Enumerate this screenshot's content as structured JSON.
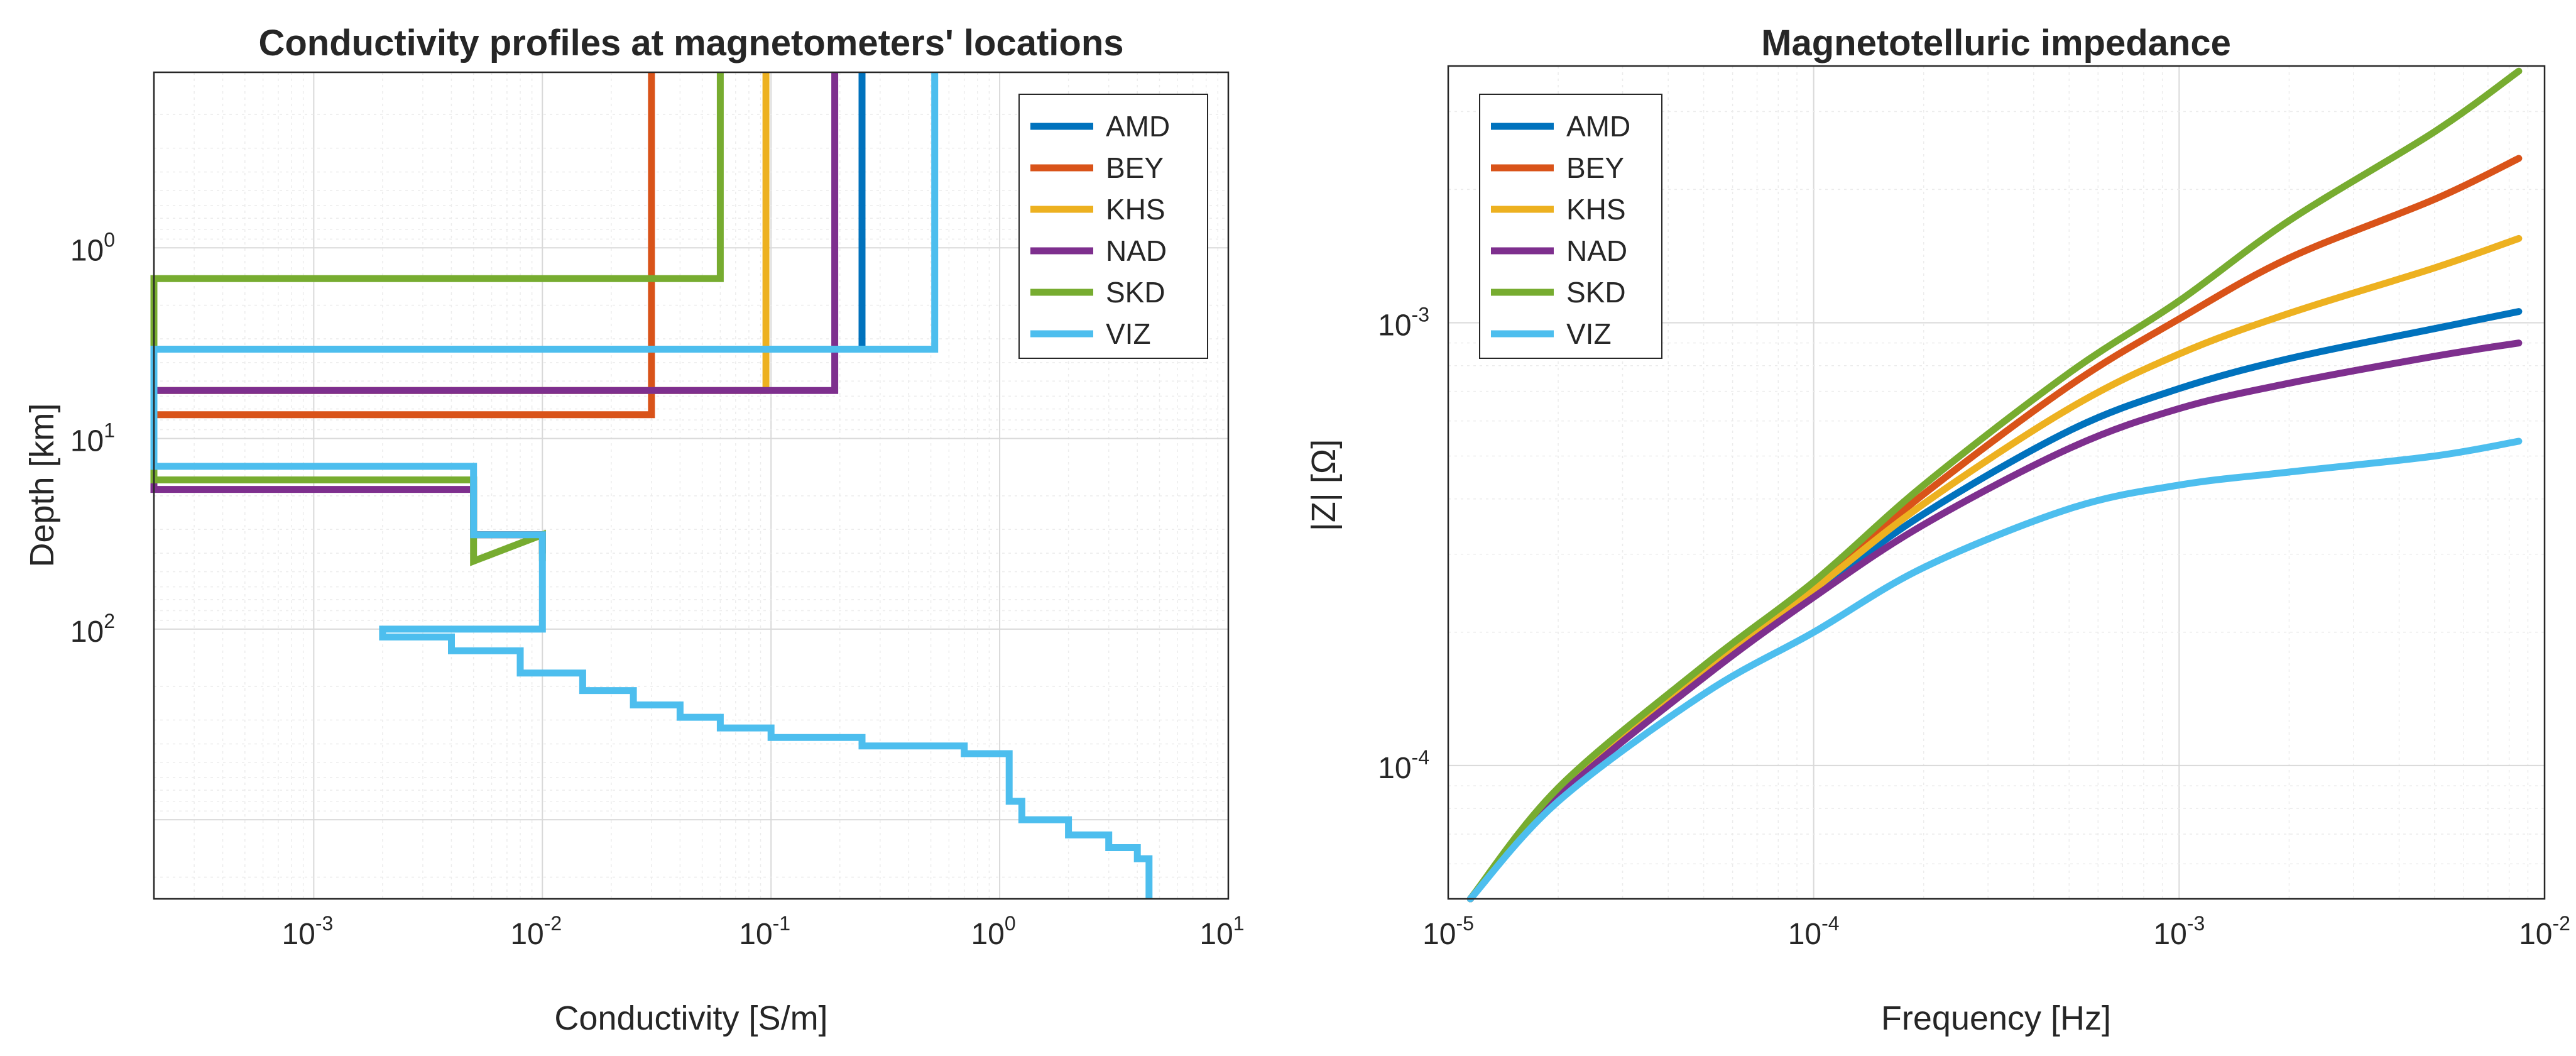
{
  "figure": {
    "left_panel_name": "conductivity-profiles-chart",
    "right_panel_name": "magnetotelluric-impedance-chart"
  },
  "colors": {
    "AMD": "#0072BD",
    "BEY": "#D95319",
    "KHS": "#EDB120",
    "NAD": "#7E2F8E",
    "SKD": "#77AC30",
    "VIZ": "#4DBEEE",
    "axis": "#262626",
    "grid": "#dcdcdc"
  },
  "chart_data": [
    {
      "type": "line",
      "title": "Conductivity profiles at magnetometers' locations",
      "xlabel": "Conductivity [S/m]",
      "ylabel": "Depth [km]",
      "xscale": "log",
      "yscale": "log",
      "y_reversed": true,
      "xlim": [
        0.0002,
        10
      ],
      "ylim": [
        0.12,
        2600
      ],
      "xticks": [
        {
          "base": "10",
          "exp": "-3",
          "value": 0.001
        },
        {
          "base": "10",
          "exp": "-2",
          "value": 0.01
        },
        {
          "base": "10",
          "exp": "-1",
          "value": 0.1
        },
        {
          "base": "10",
          "exp": "0",
          "value": 1
        },
        {
          "base": "10",
          "exp": "1",
          "value": 10
        }
      ],
      "yticks": [
        {
          "base": "10",
          "exp": "0",
          "value": 1
        },
        {
          "base": "10",
          "exp": "1",
          "value": 10
        },
        {
          "base": "10",
          "exp": "2",
          "value": 100
        }
      ],
      "legend_position": "top-right",
      "series": [
        {
          "name": "AMD",
          "sigma": [
            0.25,
            0.0002,
            0.005,
            0.01
          ],
          "depth_top": [
            0.12,
            3.4,
            16.5,
            32
          ],
          "depth_bottom": [
            3.4,
            16.5,
            32,
            40
          ]
        },
        {
          "name": "BEY",
          "sigma": [
            0.03,
            0.0002,
            0.005,
            0.01
          ],
          "depth_top": [
            0.12,
            7.5,
            16.5,
            32
          ],
          "depth_bottom": [
            7.5,
            16.5,
            32,
            36
          ]
        },
        {
          "name": "KHS",
          "sigma": [
            0.095,
            0.0002,
            0.005,
            0.01
          ],
          "depth_top": [
            0.12,
            5.6,
            16.5,
            32
          ],
          "depth_bottom": [
            5.6,
            16.5,
            32,
            40
          ]
        },
        {
          "name": "NAD",
          "sigma": [
            0.19,
            0.0002,
            0.005,
            0.01
          ],
          "depth_top": [
            0.12,
            5.6,
            18.5,
            32
          ],
          "depth_bottom": [
            5.6,
            18.5,
            32,
            40
          ]
        },
        {
          "name": "SKD",
          "sigma": [
            0.06,
            0.0002,
            0.005,
            0.01
          ],
          "depth_top": [
            0.12,
            1.45,
            16.5,
            32
          ],
          "depth_bottom": [
            1.45,
            16.5,
            44,
            44
          ]
        },
        {
          "name": "VIZ",
          "sigma": [
            0.52,
            0.0002,
            0.005,
            0.01,
            0.002,
            0.004,
            0.008,
            0.015,
            0.025,
            0.04,
            0.06,
            0.1,
            0.25,
            0.7,
            1.1,
            1.25,
            2.0,
            3.0,
            4.0,
            4.5
          ],
          "depth_top": [
            0.12,
            3.4,
            14.0,
            32,
            100,
            110,
            130,
            170,
            210,
            250,
            290,
            330,
            370,
            410,
            450,
            800,
            1000,
            1200,
            1400,
            1600
          ],
          "depth_bottom": [
            3.4,
            14.0,
            32,
            100,
            110,
            130,
            170,
            210,
            250,
            290,
            330,
            370,
            410,
            450,
            800,
            1000,
            1200,
            1400,
            1600,
            2600
          ]
        }
      ]
    },
    {
      "type": "line",
      "title": "Magnetotelluric impedance",
      "xlabel": "Frequency [Hz]",
      "ylabel": "|Z| [Ω]",
      "xscale": "log",
      "yscale": "log",
      "xlim": [
        1e-05,
        0.01
      ],
      "ylim": [
        5e-05,
        0.0038
      ],
      "xticks": [
        {
          "base": "10",
          "exp": "-5",
          "value": 1e-05
        },
        {
          "base": "10",
          "exp": "-4",
          "value": 0.0001
        },
        {
          "base": "10",
          "exp": "-3",
          "value": 0.001
        },
        {
          "base": "10",
          "exp": "-2",
          "value": 0.01
        }
      ],
      "yticks": [
        {
          "base": "10",
          "exp": "-4",
          "value": 0.0001
        },
        {
          "base": "10",
          "exp": "-3",
          "value": 0.001
        }
      ],
      "legend_position": "top-left",
      "x": [
        1.15e-05,
        2e-05,
        5e-05,
        0.0001,
        0.0002,
        0.0005,
        0.001,
        0.002,
        0.005,
        0.0085
      ],
      "series": [
        {
          "name": "AMD",
          "values": [
            5e-05,
            8.6e-05,
            0.00016,
            0.000245,
            0.00037,
            0.00057,
            0.00071,
            0.00083,
            0.00097,
            0.00106
          ]
        },
        {
          "name": "BEY",
          "values": [
            5e-05,
            8.8e-05,
            0.000165,
            0.000255,
            0.00041,
            0.00072,
            0.00102,
            0.0014,
            0.0019,
            0.00235
          ]
        },
        {
          "name": "KHS",
          "values": [
            5e-05,
            8.7e-05,
            0.000163,
            0.00025,
            0.00039,
            0.00064,
            0.00085,
            0.00105,
            0.00133,
            0.00155
          ]
        },
        {
          "name": "NAD",
          "values": [
            5e-05,
            8.5e-05,
            0.000158,
            0.00024,
            0.00035,
            0.00052,
            0.00064,
            0.00073,
            0.00084,
            0.0009
          ]
        },
        {
          "name": "SKD",
          "values": [
            5e-05,
            8.9e-05,
            0.000168,
            0.00026,
            0.00043,
            0.00077,
            0.00112,
            0.0017,
            0.0027,
            0.0037
          ]
        },
        {
          "name": "VIZ",
          "values": [
            5e-05,
            8.3e-05,
            0.000145,
            0.0002,
            0.00028,
            0.00038,
            0.00043,
            0.00046,
            0.0005,
            0.00054
          ]
        }
      ]
    }
  ]
}
